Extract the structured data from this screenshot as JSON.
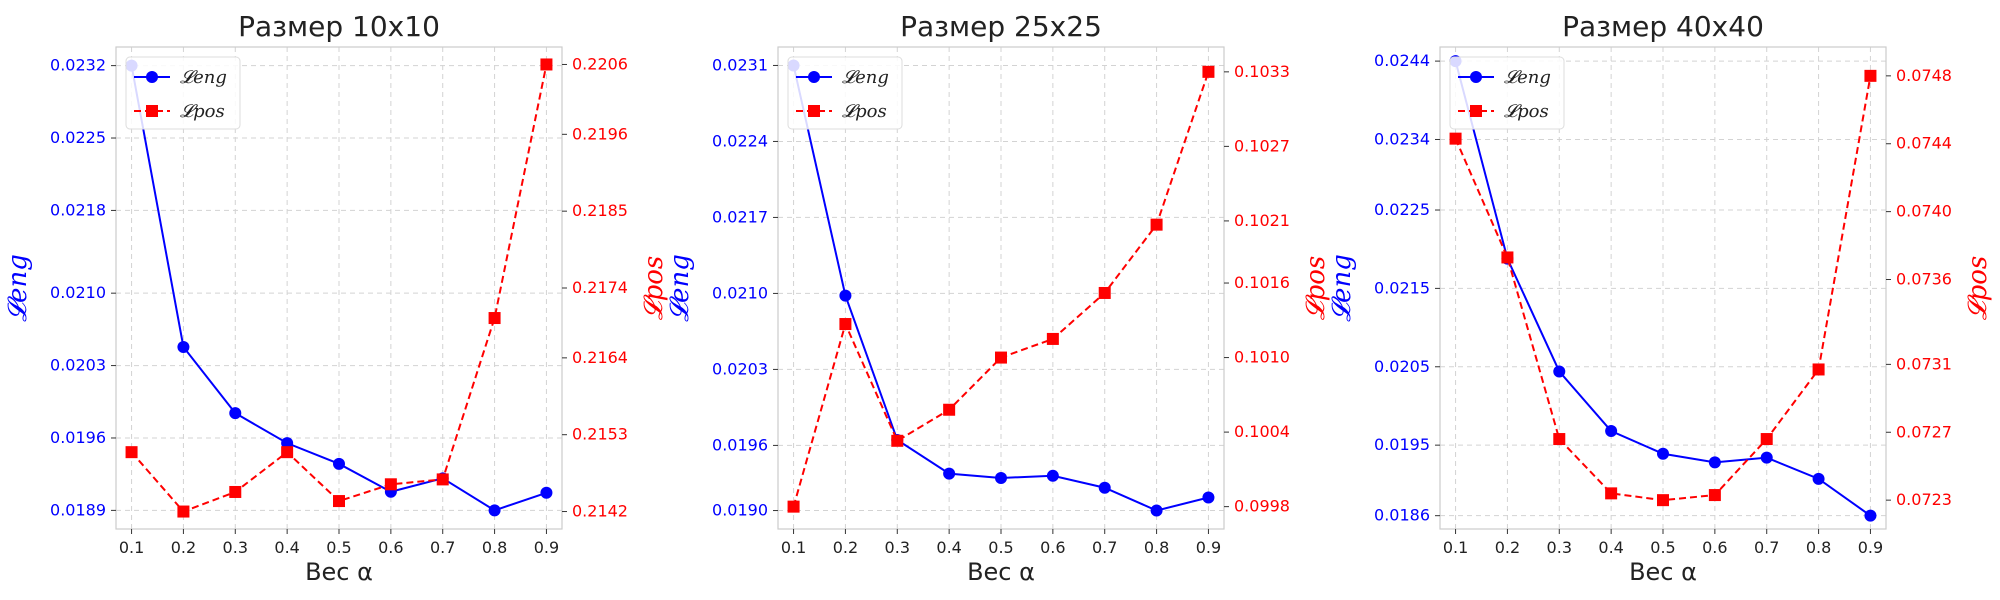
{
  "colors": {
    "eng": "#0000ff",
    "pos": "#ff0000",
    "text": "#222222"
  },
  "chart_data": [
    {
      "type": "line",
      "title": "Размер 10x10",
      "xlabel": "Вес α",
      "x": [
        0.1,
        0.2,
        0.3,
        0.4,
        0.5,
        0.6,
        0.7,
        0.8,
        0.9
      ],
      "x_ticks": [
        "0.1",
        "0.2",
        "0.3",
        "0.4",
        "0.5",
        "0.6",
        "0.7",
        "0.8",
        "0.9"
      ],
      "ylabel_left": "𝓛eng",
      "ylabel_right": "𝓛pos",
      "ylim_left": [
        0.01872,
        0.02338
      ],
      "ylim_right": [
        0.21395,
        0.22085
      ],
      "yticks_left": [
        0.0189,
        0.0196,
        0.0203,
        0.021,
        0.0218,
        0.0225,
        0.0232
      ],
      "ytick_labels_left": [
        "0.0189",
        "0.0196",
        "0.0203",
        "0.0210",
        "0.0218",
        "0.0225",
        "0.0232"
      ],
      "yticks_right": [
        0.2142,
        0.2153,
        0.2164,
        0.2174,
        0.2185,
        0.2196,
        0.2206
      ],
      "ytick_labels_right": [
        "0.2142",
        "0.2153",
        "0.2164",
        "0.2174",
        "0.2185",
        "0.2196",
        "0.2206"
      ],
      "grid": true,
      "legend_position": "top-left",
      "series": [
        {
          "name": "𝓛eng",
          "axis": "left",
          "color": "#0000ff",
          "marker": "circle",
          "style": "solid",
          "values": [
            0.0232,
            0.02048,
            0.01984,
            0.01955,
            0.01935,
            0.01908,
            0.01921,
            0.0189,
            0.01907
          ]
        },
        {
          "name": "𝓛pos",
          "axis": "right",
          "color": "#ff0000",
          "marker": "square",
          "style": "dashed",
          "values": [
            0.21505,
            0.2142,
            0.21448,
            0.21505,
            0.21435,
            0.21459,
            0.21466,
            0.21697,
            0.2206
          ]
        }
      ]
    },
    {
      "type": "line",
      "title": "Размер 25x25",
      "xlabel": "Вес α",
      "x": [
        0.1,
        0.2,
        0.3,
        0.4,
        0.5,
        0.6,
        0.7,
        0.8,
        0.9
      ],
      "x_ticks": [
        "0.1",
        "0.2",
        "0.3",
        "0.4",
        "0.5",
        "0.6",
        "0.7",
        "0.8",
        "0.9"
      ],
      "ylabel_left": "𝓛eng",
      "ylabel_right": "𝓛pos",
      "ylim_left": [
        0.01883,
        0.02327
      ],
      "ylim_right": [
        0.09962,
        0.1035
      ],
      "yticks_left": [
        0.019,
        0.0196,
        0.0203,
        0.021,
        0.0217,
        0.0224,
        0.0231
      ],
      "ytick_labels_left": [
        "0.0190",
        "0.0196",
        "0.0203",
        "0.0210",
        "0.0217",
        "0.0224",
        "0.0231"
      ],
      "yticks_right": [
        0.0998,
        0.1004,
        0.101,
        0.1016,
        0.1021,
        0.1027,
        0.1033
      ],
      "ytick_labels_right": [
        "0.0998",
        "0.1004",
        "0.1010",
        "0.1016",
        "0.1021",
        "0.1027",
        "0.1033"
      ],
      "grid": true,
      "legend_position": "top-left",
      "series": [
        {
          "name": "𝓛eng",
          "axis": "left",
          "color": "#0000ff",
          "marker": "circle",
          "style": "solid",
          "values": [
            0.0231,
            0.02098,
            0.01965,
            0.01934,
            0.0193,
            0.01932,
            0.01921,
            0.019,
            0.01912
          ]
        },
        {
          "name": "𝓛pos",
          "axis": "right",
          "color": "#ff0000",
          "marker": "square",
          "style": "dashed",
          "values": [
            0.0998,
            0.10127,
            0.10033,
            0.10058,
            0.101,
            0.10115,
            0.10152,
            0.10207,
            0.1033
          ]
        }
      ]
    },
    {
      "type": "line",
      "title": "Размер 40x40",
      "xlabel": "Вес α",
      "x": [
        0.1,
        0.2,
        0.3,
        0.4,
        0.5,
        0.6,
        0.7,
        0.8,
        0.9
      ],
      "x_ticks": [
        "0.1",
        "0.2",
        "0.3",
        "0.4",
        "0.5",
        "0.6",
        "0.7",
        "0.8",
        "0.9"
      ],
      "ylabel_left": "𝓛eng",
      "ylabel_right": "𝓛pos",
      "ylim_left": [
        0.01843,
        0.02458
      ],
      "ylim_right": [
        0.07213,
        0.07497
      ],
      "yticks_left": [
        0.0186,
        0.0195,
        0.0205,
        0.0215,
        0.0225,
        0.0234,
        0.0244
      ],
      "ytick_labels_left": [
        "0.0186",
        "0.0195",
        "0.0205",
        "0.0215",
        "0.0225",
        "0.0234",
        "0.0244"
      ],
      "yticks_right": [
        0.0723,
        0.0727,
        0.0731,
        0.0736,
        0.074,
        0.0744,
        0.0748
      ],
      "ytick_labels_right": [
        "0.0723",
        "0.0727",
        "0.0731",
        "0.0736",
        "0.0740",
        "0.0744",
        "0.0748"
      ],
      "grid": true,
      "legend_position": "top-left",
      "series": [
        {
          "name": "𝓛eng",
          "axis": "left",
          "color": "#0000ff",
          "marker": "circle",
          "style": "solid",
          "values": [
            0.0244,
            0.02188,
            0.02044,
            0.01968,
            0.01939,
            0.01928,
            0.01934,
            0.01907,
            0.0186
          ]
        },
        {
          "name": "𝓛pos",
          "axis": "right",
          "color": "#ff0000",
          "marker": "square",
          "style": "dashed",
          "values": [
            0.07443,
            0.07373,
            0.07266,
            0.07234,
            0.0723,
            0.07233,
            0.07266,
            0.07307,
            0.0748
          ]
        }
      ]
    }
  ]
}
